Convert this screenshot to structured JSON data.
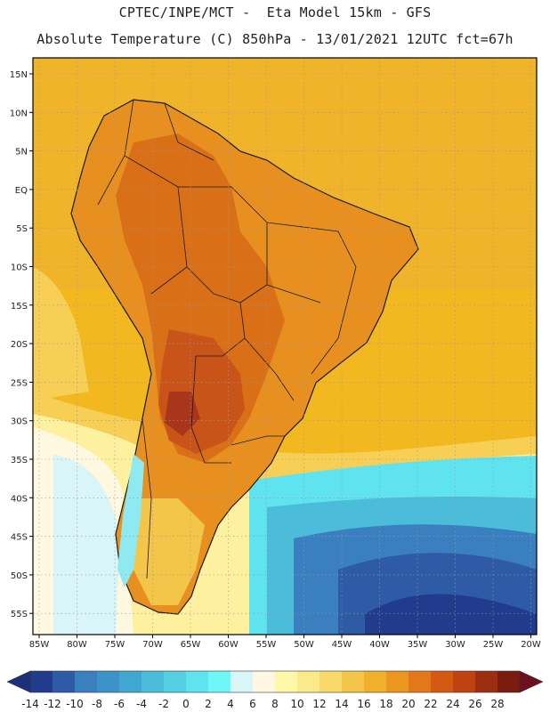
{
  "header": {
    "line1": "CPTEC/INPE/MCT -  Eta Model 15km - GFS",
    "line2": "Absolute Temperature (C) 850hPa - 13/01/2021 12UTC fct=67h"
  },
  "map": {
    "lat_labels": [
      "15N",
      "10N",
      "5N",
      "EQ",
      "5S",
      "10S",
      "15S",
      "20S",
      "25S",
      "30S",
      "35S",
      "40S",
      "45S",
      "50S",
      "55S"
    ],
    "lon_labels": [
      "85W",
      "80W",
      "75W",
      "70W",
      "65W",
      "60W",
      "55W",
      "50W",
      "45W",
      "40W",
      "35W",
      "30W",
      "25W",
      "20W"
    ],
    "colors": {
      "ocean_warm": "#f2ae1c",
      "land_hot": "#e07a1a",
      "frame": "#000000"
    }
  },
  "colorbar": {
    "labels": [
      "-14",
      "-12",
      "-10",
      "-8",
      "-6",
      "-4",
      "-2",
      "0",
      "2",
      "4",
      "6",
      "8",
      "10",
      "12",
      "14",
      "16",
      "18",
      "20",
      "22",
      "24",
      "26",
      "28"
    ],
    "colors": [
      "#213b8d",
      "#2e5aa6",
      "#3a7fbf",
      "#3d93c9",
      "#40a7d2",
      "#4bbcd9",
      "#55cfe3",
      "#5fe3ee",
      "#6ff6f6",
      "#d8f6f7",
      "#fff7e2",
      "#fff8a8",
      "#fbe98a",
      "#f8d96a",
      "#f3c64a",
      "#f0b02c",
      "#eb961f",
      "#e2781a",
      "#d45a14",
      "#bf4310",
      "#9c2e10",
      "#7a1c10"
    ],
    "low_color": "#1c2f7a",
    "high_color": "#6a1020"
  }
}
